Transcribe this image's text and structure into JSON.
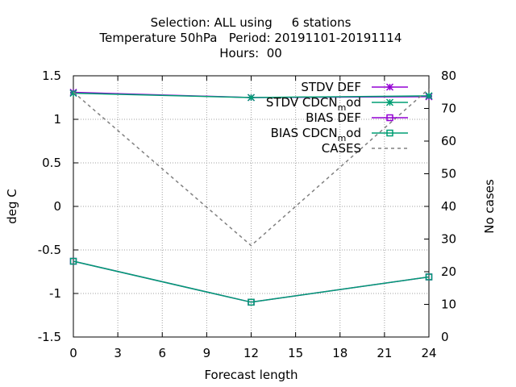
{
  "chart_data": {
    "type": "line",
    "title_lines": [
      "Selection: ALL using     6 stations",
      "Temperature 50hPa   Period: 20191101-20191114",
      "Hours:  00"
    ],
    "xlabel": "Forecast length",
    "ylabel": "deg C",
    "y2label": "No cases",
    "xlim": [
      0,
      24
    ],
    "ylim": [
      -1.5,
      1.5
    ],
    "y2lim": [
      0,
      80
    ],
    "xticks": [
      "0",
      "3",
      "6",
      "9",
      "12",
      "15",
      "18",
      "21",
      "24"
    ],
    "yticks": [
      "-1.5",
      "-1",
      "-0.5",
      "0",
      "0.5",
      "1",
      "1.5"
    ],
    "y2ticks": [
      "0",
      "10",
      "20",
      "30",
      "40",
      "50",
      "60",
      "70",
      "80"
    ],
    "grid": true,
    "legend_position": "top-right",
    "x": [
      0,
      12,
      24
    ],
    "series": [
      {
        "name": "STDV DEF",
        "axis": "y1",
        "values": [
          1.31,
          1.25,
          1.26
        ],
        "color": "#9400d3",
        "marker": "star",
        "dash": ""
      },
      {
        "name": "STDV CDCN",
        "subscript": "m",
        "suffix": "od",
        "axis": "y1",
        "values": [
          1.3,
          1.25,
          1.27
        ],
        "color": "#009e73",
        "marker": "star",
        "dash": ""
      },
      {
        "name": "BIAS DEF",
        "axis": "y1",
        "values": [
          -0.63,
          -1.1,
          -0.81
        ],
        "color": "#9400d3",
        "marker": "square",
        "dash": ""
      },
      {
        "name": "BIAS CDCN",
        "subscript": "m",
        "suffix": "od",
        "axis": "y1",
        "values": [
          -0.63,
          -1.1,
          -0.81
        ],
        "color": "#009e73",
        "marker": "square",
        "dash": ""
      },
      {
        "name": "CASES",
        "axis": "y2",
        "values": [
          75,
          28,
          76
        ],
        "color": "#808080",
        "marker": "none",
        "dash": "4 4"
      }
    ]
  }
}
